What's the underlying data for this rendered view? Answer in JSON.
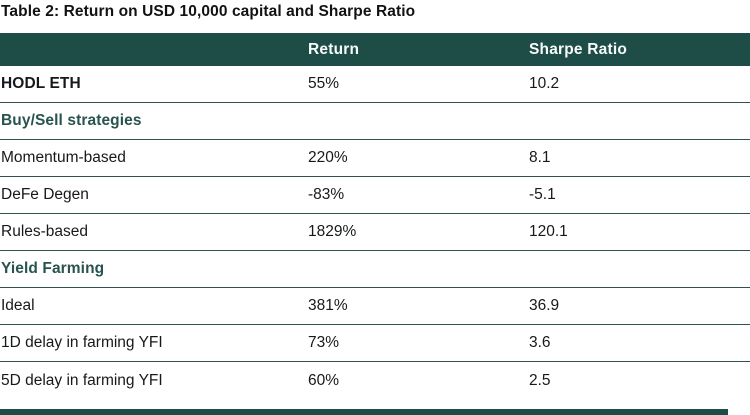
{
  "title": "Table 2: Return on USD 10,000 capital and Sharpe Ratio",
  "table": {
    "columns": [
      "",
      "Return",
      "Sharpe Ratio"
    ],
    "rows": [
      {
        "type": "data",
        "emphasis": "bold",
        "label": "HODL ETH",
        "return": "55%",
        "sharpe": "10.2"
      },
      {
        "type": "section",
        "label": "Buy/Sell strategies"
      },
      {
        "type": "data",
        "label": "Momentum-based",
        "return": "220%",
        "sharpe": "8.1"
      },
      {
        "type": "data",
        "label": "DeFe Degen",
        "return": "-83%",
        "sharpe": "-5.1"
      },
      {
        "type": "data",
        "label": "Rules-based",
        "return": "1829%",
        "sharpe": "120.1"
      },
      {
        "type": "section",
        "label": "Yield Farming"
      },
      {
        "type": "data",
        "label": "Ideal",
        "return": "381%",
        "sharpe": "36.9"
      },
      {
        "type": "data",
        "label": "1D delay in farming YFI",
        "return": "73%",
        "sharpe": "3.6"
      },
      {
        "type": "data",
        "label": "5D delay in farming YFI",
        "return": "60%",
        "sharpe": "2.5"
      }
    ]
  },
  "colors": {
    "header_bg": "#1e4d47",
    "header_text": "#f8fbfa",
    "divider": "#335150",
    "section_text": "#29534e",
    "body_text": "#16191c",
    "title_text": "#121212"
  }
}
